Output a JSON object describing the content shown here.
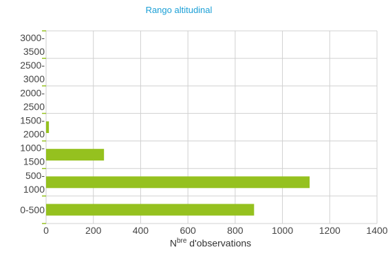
{
  "chart_data": {
    "type": "bar",
    "orientation": "horizontal",
    "title": "Rango altitudinal",
    "xlabel": {
      "prefix": "N",
      "sup": "bre",
      "suffix": " d'observations"
    },
    "ylabel": "",
    "categories": [
      [
        "0-500"
      ],
      [
        "500-",
        "1000"
      ],
      [
        "1000-",
        "1500"
      ],
      [
        "1500-",
        "2000"
      ],
      [
        "2000-",
        "2500"
      ],
      [
        "2500-",
        "3000"
      ],
      [
        "3000-",
        "3500"
      ]
    ],
    "values": [
      880,
      1115,
      245,
      12,
      0,
      0,
      0
    ],
    "xlim": [
      0,
      1400
    ],
    "xticks": [
      0,
      200,
      400,
      600,
      800,
      1000,
      1200,
      1400
    ],
    "grid": true,
    "legend": "none",
    "bar_color": "#95c11f",
    "title_color": "#1a9fd6"
  }
}
